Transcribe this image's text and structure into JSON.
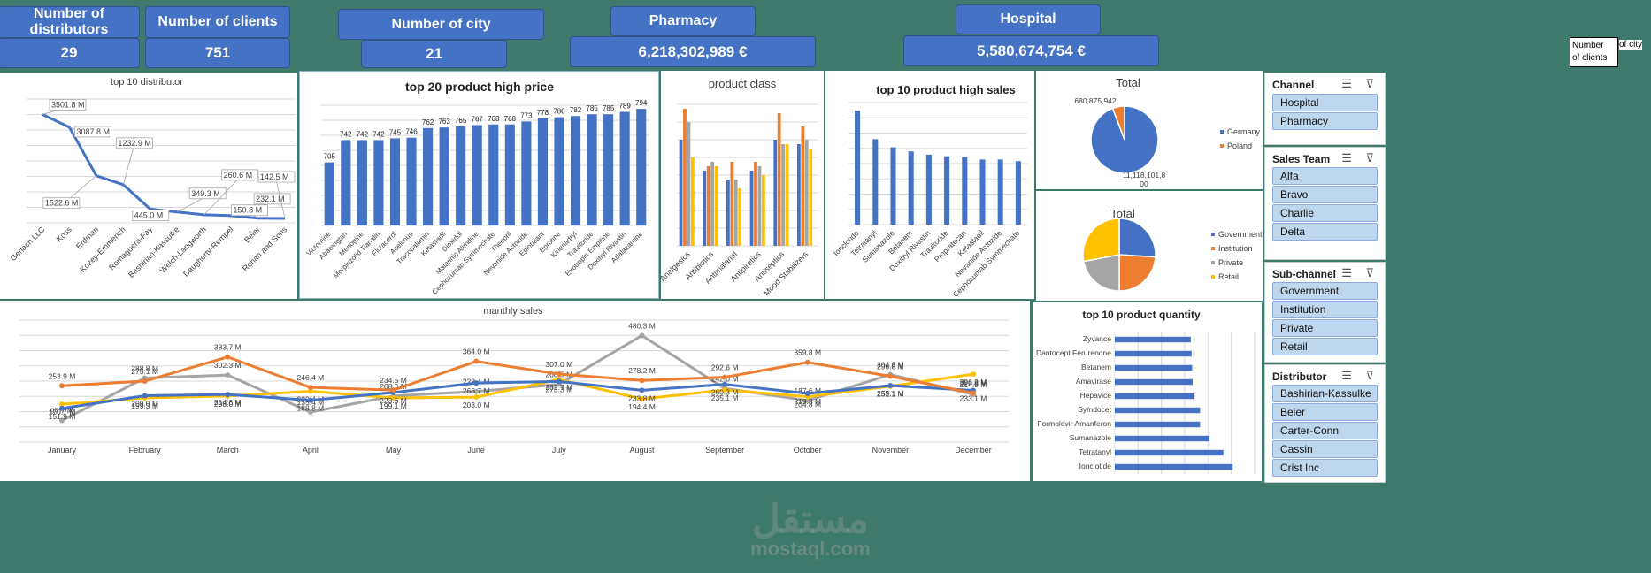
{
  "kpis": {
    "distributors_label": "Number of distributors",
    "distributors_value": "29",
    "clients_label": "Number of clients",
    "clients_value": "751",
    "city_label": "Number of city",
    "city_value": "21",
    "pharmacy_label": "Pharmacy",
    "pharmacy_value": "6,218,302,989 €",
    "hospital_label": "Hospital",
    "hospital_value": "5,580,674,754 €"
  },
  "tooltip": {
    "line1": "Number",
    "line2": "of clients",
    "tail": "of city"
  },
  "slicers": {
    "channel": {
      "title": "Channel",
      "items": [
        "Hospital",
        "Pharmacy"
      ]
    },
    "sales_team": {
      "title": "Sales Team",
      "items": [
        "Alfa",
        "Bravo",
        "Charlie",
        "Delta"
      ]
    },
    "sub_channel": {
      "title": "Sub-channel",
      "items": [
        "Government",
        "Institution",
        "Private",
        "Retail"
      ]
    },
    "distributor": {
      "title": "Distributor",
      "items": [
        "Bashirian-Kassulke",
        "Beier",
        "Carter-Conn",
        "Cassin",
        "Crist Inc"
      ]
    }
  },
  "watermark": {
    "arabic": "مستقل",
    "latin": "mostaql.com"
  },
  "colors": {
    "blue": "#4472c4",
    "orange": "#ed7d31",
    "gray": "#a5a5a5",
    "yellow": "#ffc000"
  },
  "chart_data": [
    {
      "id": "distributor",
      "type": "line",
      "title": "top 10 distributor",
      "categories": [
        "Gerlach LLC",
        "Koss",
        "Erdman",
        "Kozey-Emmerich",
        "Romaguera-Fay",
        "Bashirian-Kassulke",
        "Welch-Langworth",
        "Daugherty-Rempel",
        "Beier",
        "Rohan and Sons"
      ],
      "values": [
        3501.8,
        3087.8,
        1522.6,
        1232.9,
        445.0,
        349.3,
        260.6,
        232.1,
        150.8,
        142.5
      ],
      "labels": [
        "3501.8 M",
        "3087.8 M",
        "1522.6 M",
        "1232.9 M",
        "445.0 M",
        "349.3 M",
        "260.6 M",
        "232.1 M",
        "150.8 M",
        "142.5 M"
      ],
      "ylim": [
        0,
        4000
      ]
    },
    {
      "id": "price",
      "type": "bar",
      "title": "top 20 product high price",
      "categories": [
        "Victomine",
        "Abaterigtan",
        "Menogine",
        "Morpinzolid Tianalin",
        "Flutacerol",
        "Acelimus",
        "Tracobalamin",
        "Ketastadil",
        "Dioxidol",
        "Malarinic Alimdine",
        "Cephozumab Symmechate",
        "Theopril",
        "Nevanide Actozide",
        "Epiotaiant",
        "Eprotine",
        "Kinenadryl",
        "Travitoride",
        "Exotropin Empitine",
        "Doxitryl Rivastin",
        "Adalazamine"
      ],
      "values": [
        705,
        742,
        742,
        742,
        745,
        746,
        762,
        763,
        765,
        767,
        768,
        768,
        773,
        778,
        780,
        782,
        785,
        785,
        789,
        794
      ],
      "ylim": [
        600,
        800
      ]
    },
    {
      "id": "class",
      "type": "bar",
      "title": "product class",
      "categories": [
        "Analgesics",
        "Antibiotics",
        "Antimalarial",
        "Antipiretics",
        "Antiseptics",
        "Mood Stabilizers"
      ],
      "series": [
        {
          "values": [
            12,
            8.5,
            7.5,
            8.5,
            12,
            11.5
          ]
        },
        {
          "values": [
            15.5,
            9,
            9.5,
            9.5,
            15,
            13.5
          ]
        },
        {
          "values": [
            14,
            9.5,
            7.5,
            9,
            11.5,
            12
          ]
        },
        {
          "values": [
            10,
            9,
            6.5,
            8,
            11.5,
            11
          ]
        }
      ],
      "ylim": [
        0,
        16
      ]
    },
    {
      "id": "sales",
      "type": "bar",
      "title": "top 10 product high sales",
      "categories": [
        "Ionclotide",
        "Tetratanyl",
        "Sumanazole",
        "Betanem",
        "Doxitryl Rivastin",
        "Travitoride",
        "Propratecan",
        "Ketastadil",
        "Nevanide Actozide",
        "Cephozumab Symmechate"
      ],
      "values": [
        14,
        10.5,
        9.5,
        9,
        8.6,
        8.4,
        8.3,
        8,
        8,
        7.8
      ],
      "ylim": [
        0,
        15
      ]
    },
    {
      "id": "channel_pie",
      "type": "pie",
      "title": "Total",
      "categories": [
        "Germany",
        "Poland"
      ],
      "values": [
        11118101800,
        680875942
      ],
      "labels": [
        "11,118,101,8\n00",
        "680,875,942"
      ]
    },
    {
      "id": "subchannel_pie",
      "type": "pie",
      "title": "Total",
      "categories": [
        "Government",
        "Institution",
        "Private",
        "Retail"
      ],
      "values": [
        26,
        24,
        22,
        28
      ]
    },
    {
      "id": "monthly",
      "type": "line",
      "title": "manthly sales",
      "categories": [
        "January",
        "February",
        "March",
        "April",
        "May",
        "June",
        "July",
        "August",
        "September",
        "October",
        "November",
        "December"
      ],
      "series": [
        {
          "values": [
            151.9,
            209.0,
            214.8,
            188.8,
            223.6,
            266.7,
            273.3,
            233.8,
            260.3,
            219.3,
            255.1,
            233.1
          ],
          "labels": [
            "151.9 M",
            "209.0 M",
            "214.8 M",
            "188.8 M",
            "223.6 M",
            "266.7 M",
            "273.3 M",
            "233.8 M",
            "260.3 M",
            "219.3 M",
            "255.1 M",
            "233.1 M"
          ]
        },
        {
          "values": [
            253.9,
            275.1,
            383.7,
            246.4,
            234.5,
            364.0,
            307.0,
            278.2,
            292.6,
            359.8,
            296.8,
            220.8
          ],
          "labels": [
            "253.9 M",
            "275.1 M",
            "383.7 M",
            "246.4 M",
            "234.5 M",
            "364.0 M",
            "307.0 M",
            "278.2 M",
            "292.6 M",
            "359.8 M",
            "296.8 M",
            "220.8 M"
          ]
        },
        {
          "values": [
            97.7,
            288.8,
            302.3,
            135.4,
            208.0,
            228.4,
            260.5,
            480.3,
            242.0,
            187.6,
            304.8,
            214.9
          ],
          "labels": [
            "97.7 M",
            "288.8 M",
            "302.3 M",
            "135.4 M",
            "208.0 M",
            "228.4 M",
            "260.5 M",
            "480.3 M",
            "242.0 M",
            "187.6 M",
            "304.8 M",
            "214.9 M"
          ]
        },
        {
          "values": [
            170.7,
            199.3,
            208.0,
            229.4,
            199.1,
            203.0,
            282.7,
            194.4,
            235.1,
            204.8,
            252.1,
            306.3
          ],
          "labels": [
            "170.7 M",
            "199.3 M",
            "208.0 M",
            "229.4 M",
            "199.1 M",
            "203.0 M",
            "282.7 M",
            "194.4 M",
            "235.1 M",
            "204.8 M",
            "252.1 M",
            "306.3 M"
          ]
        }
      ],
      "ylim": [
        0,
        550
      ]
    },
    {
      "id": "quantity",
      "type": "bar",
      "title": "top 10 product quantity",
      "categories": [
        "Zyvance",
        "Dantocept Ferurenone",
        "Betanem",
        "Amavirase",
        "Hepavice",
        "Symdocet",
        "Formolovir Amanferon",
        "Sumanazole",
        "Tetratanyl",
        "Ionclotide"
      ],
      "values": [
        1.63,
        1.65,
        1.66,
        1.67,
        1.69,
        1.83,
        1.83,
        2.03,
        2.33,
        2.53
      ],
      "xlim": [
        0,
        3
      ]
    }
  ]
}
